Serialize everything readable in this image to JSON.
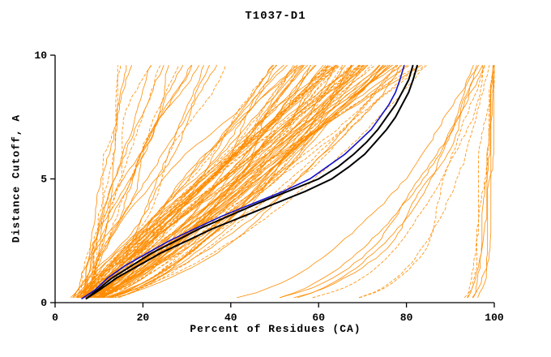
{
  "window": {
    "background": "#ffffff"
  },
  "chart_data": {
    "type": "line",
    "title": "T1037-D1",
    "xlabel": "Percent of Residues (CA)",
    "ylabel": "Distance Cutoff, A",
    "xlim": [
      0,
      100
    ],
    "ylim": [
      0,
      10
    ],
    "x_ticks": [
      0,
      20,
      40,
      60,
      80,
      100
    ],
    "y_ticks": [
      0,
      5,
      10
    ],
    "grid": false,
    "legend": false,
    "colors": {
      "ensemble": "#ff8c00",
      "highlight_blue": "#1111cc",
      "highlight_black": "#000000",
      "axis": "#000000"
    },
    "highlight_series": [
      {
        "name": "blue-model-curve",
        "color": "#1111cc",
        "width": 1.6,
        "points": [
          [
            6,
            0.15
          ],
          [
            9,
            0.5
          ],
          [
            12,
            1
          ],
          [
            16,
            1.5
          ],
          [
            21,
            2
          ],
          [
            26,
            2.5
          ],
          [
            32,
            3
          ],
          [
            38,
            3.5
          ],
          [
            45,
            4
          ],
          [
            52,
            4.5
          ],
          [
            58,
            5
          ],
          [
            62,
            5.5
          ],
          [
            66,
            6
          ],
          [
            69,
            6.5
          ],
          [
            72,
            7
          ],
          [
            74,
            7.5
          ],
          [
            76,
            8
          ],
          [
            77.5,
            8.5
          ],
          [
            78.5,
            9
          ],
          [
            79.5,
            9.6
          ]
        ]
      },
      {
        "name": "black-model-curve-1",
        "color": "#000000",
        "width": 2.0,
        "points": [
          [
            7,
            0.15
          ],
          [
            10,
            0.5
          ],
          [
            14,
            1
          ],
          [
            19,
            1.5
          ],
          [
            24,
            2
          ],
          [
            30,
            2.5
          ],
          [
            36,
            3
          ],
          [
            43,
            3.5
          ],
          [
            50,
            4
          ],
          [
            57,
            4.5
          ],
          [
            63,
            5
          ],
          [
            67,
            5.5
          ],
          [
            70.5,
            6
          ],
          [
            73,
            6.5
          ],
          [
            75.5,
            7
          ],
          [
            77.5,
            7.5
          ],
          [
            79,
            8
          ],
          [
            80.5,
            8.5
          ],
          [
            81.5,
            9
          ],
          [
            82.5,
            9.6
          ]
        ]
      },
      {
        "name": "black-model-curve-2",
        "color": "#000000",
        "width": 2.0,
        "points": [
          [
            7,
            0.15
          ],
          [
            9.5,
            0.5
          ],
          [
            13,
            1
          ],
          [
            17.5,
            1.5
          ],
          [
            22,
            2
          ],
          [
            27.5,
            2.5
          ],
          [
            33,
            3
          ],
          [
            39.5,
            3.5
          ],
          [
            46,
            4
          ],
          [
            53,
            4.5
          ],
          [
            60,
            5
          ],
          [
            64.5,
            5.5
          ],
          [
            68,
            6
          ],
          [
            71,
            6.5
          ],
          [
            73.5,
            7
          ],
          [
            75.5,
            7.5
          ],
          [
            77.5,
            8
          ],
          [
            79,
            8.5
          ],
          [
            80.5,
            9
          ],
          [
            81.5,
            9.6
          ]
        ]
      }
    ],
    "ensemble": {
      "name": "prediction-curves",
      "color": "#ff8c00",
      "count": 115,
      "seed": 13,
      "y_start": 0.2,
      "y_end": 9.6,
      "y_step": 0.2,
      "groups": [
        {
          "name": "left-steep",
          "fraction": 0.16,
          "start": [
            4,
            9
          ],
          "end": [
            12,
            42
          ],
          "shape": [
            0.7,
            1.6
          ]
        },
        {
          "name": "main-bundle",
          "fraction": 0.72,
          "start": [
            3,
            8
          ],
          "end": [
            52,
            88
          ],
          "shape": [
            0.5,
            1.2
          ]
        },
        {
          "name": "right-sweep",
          "fraction": 0.07,
          "start": [
            25,
            60
          ],
          "end": [
            96,
            100
          ],
          "shape": [
            0.25,
            0.45
          ]
        },
        {
          "name": "right-edge",
          "fraction": 0.05,
          "start": [
            88,
            95
          ],
          "end": [
            99.5,
            100
          ],
          "shape": [
            0.3,
            0.5
          ]
        }
      ],
      "noise": {
        "wave_amplitude": 1.8,
        "point_jitter": 0.5
      }
    }
  }
}
